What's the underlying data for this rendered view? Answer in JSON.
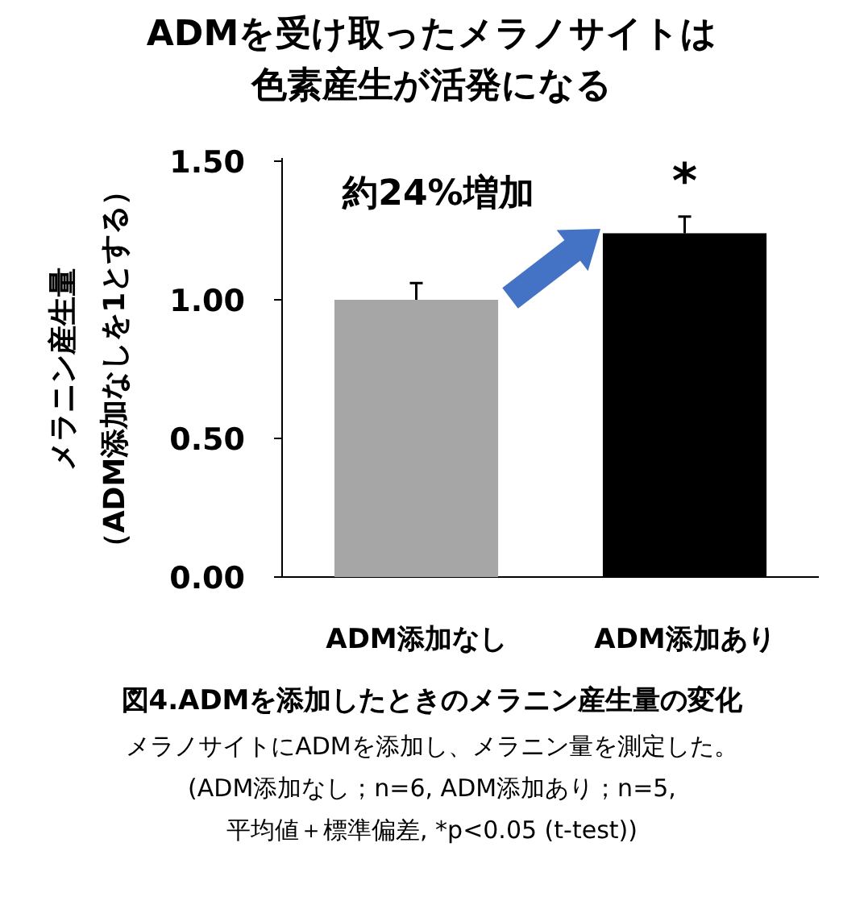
{
  "chart_data": {
    "type": "bar",
    "title": "ADMを受け取ったメラノサイトは色素産生が活発になる",
    "ylabel": "メラニン産生量",
    "categories": [
      "ADM添加なし",
      "ADM添加あり"
    ],
    "values": [
      1.0,
      1.24
    ],
    "colors": [
      "#a6a6a6",
      "#000000"
    ],
    "errors": [
      0.06,
      0.06
    ],
    "ylim": [
      0,
      1.5
    ],
    "yticks": [
      {
        "value": 0,
        "label": "0.00"
      },
      {
        "value": 0.5,
        "label": "0.50"
      },
      {
        "value": 1,
        "label": "1.00"
      },
      {
        "value": 1.5,
        "label": "1.50"
      }
    ],
    "grid": false,
    "annotations": [
      "約24%増加",
      {
        "text": "*",
        "x": "ADM添加あり",
        "y": 1.3
      },
      "（ADM添加なしを1とする）",
      "図4.ADMを添加したときのメラニン産生量の変化",
      "メラノサイトにADMを添加し、メラニン量を測定した。",
      "(ADM添加なし；n=6, ADM添加あり；n=5,",
      "平均値＋標準偏差, *p<0.05 (t-test))"
    ]
  }
}
